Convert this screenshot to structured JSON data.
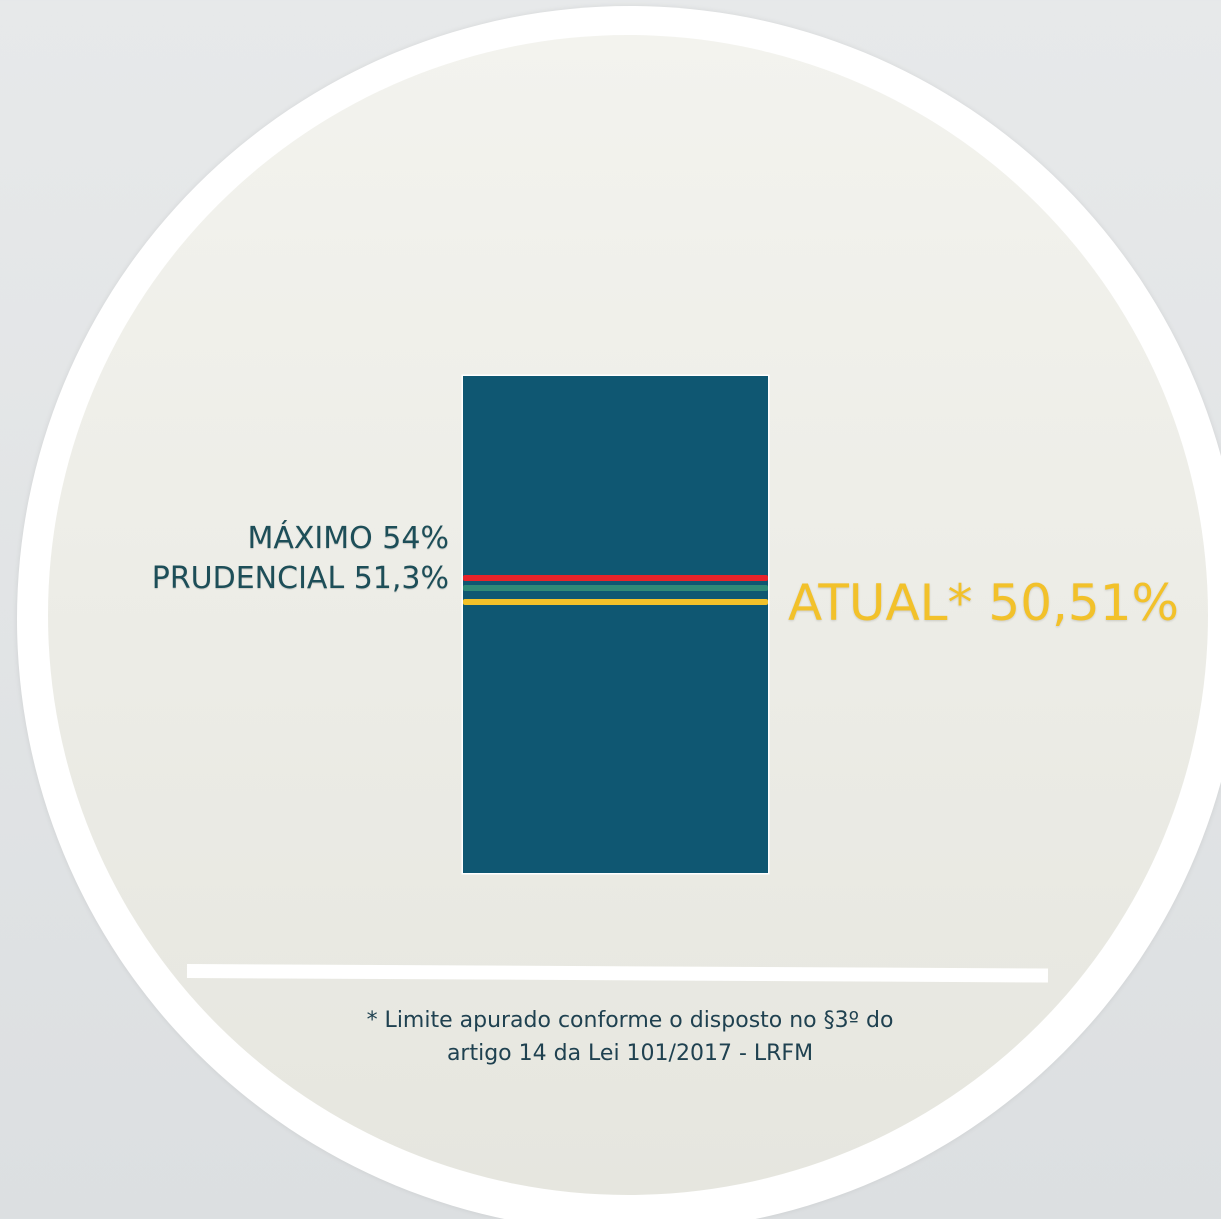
{
  "colors": {
    "bar": "#0f5772",
    "maximo": "#e8232a",
    "prudencial": "#2f8a78",
    "atual": "#f2c12a",
    "label_text": "#1d4e58",
    "atual_text": "#f2c12a",
    "footnote_text": "#1f4150"
  },
  "labels": {
    "maximo": "MÁXIMO 54%",
    "prudencial": "PRUDENCIAL 51,3%",
    "atual": "ATUAL* 50,51%"
  },
  "footnote": {
    "line1": "* Limite apurado conforme o disposto no §3º do",
    "line2": "artigo 14 da Lei 101/2017 - LRFM"
  }
}
